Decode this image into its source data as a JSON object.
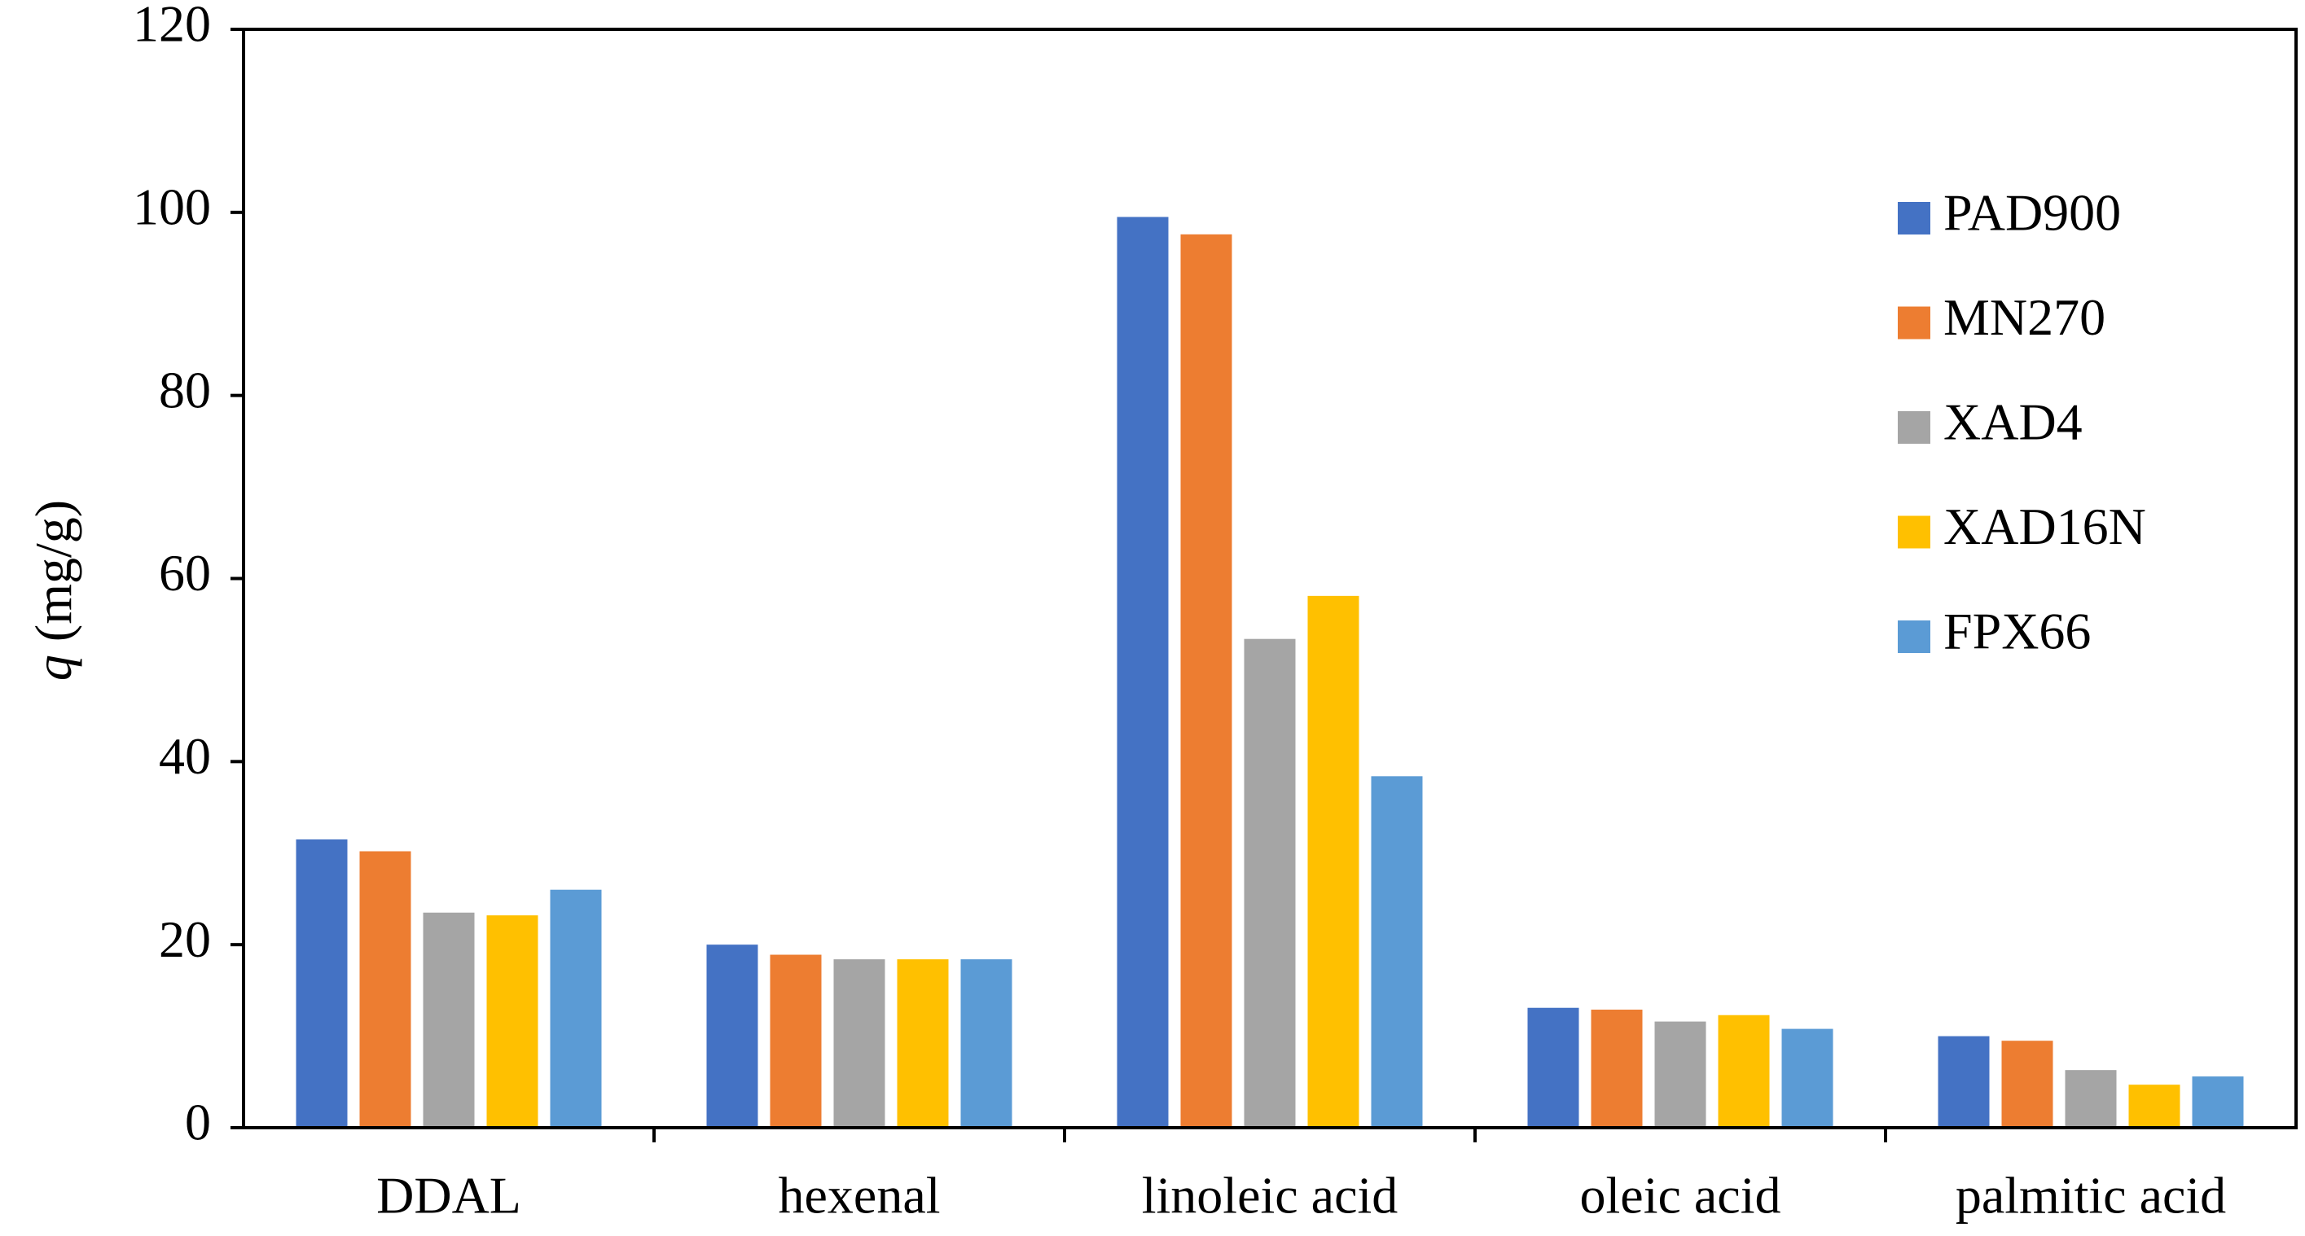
{
  "chart_data": {
    "type": "bar",
    "ylabel": {
      "symbol": "q",
      "text": "(mg/g)"
    },
    "categories": [
      "DDAL",
      "hexenal",
      "linoleic acid",
      "oleic acid",
      "palmitic acid"
    ],
    "series": [
      {
        "name": "PAD900",
        "color": "#4472c4",
        "values": [
          31.5,
          20.0,
          99.5,
          13.1,
          10.0
        ]
      },
      {
        "name": "MN270",
        "color": "#ed7d31",
        "values": [
          30.2,
          18.9,
          97.6,
          12.9,
          9.5
        ]
      },
      {
        "name": "XAD4",
        "color": "#a5a5a5",
        "values": [
          23.5,
          18.4,
          53.4,
          11.6,
          6.3
        ]
      },
      {
        "name": "XAD16N",
        "color": "#ffc000",
        "values": [
          23.2,
          18.4,
          58.1,
          12.3,
          4.7
        ]
      },
      {
        "name": "FPX66",
        "color": "#5b9bd5",
        "values": [
          26.0,
          18.4,
          38.4,
          10.8,
          5.6
        ]
      }
    ],
    "ylim": [
      0,
      120
    ],
    "yticks": [
      0,
      20,
      40,
      60,
      80,
      100,
      120
    ],
    "grid": false,
    "legend": "upper right"
  }
}
